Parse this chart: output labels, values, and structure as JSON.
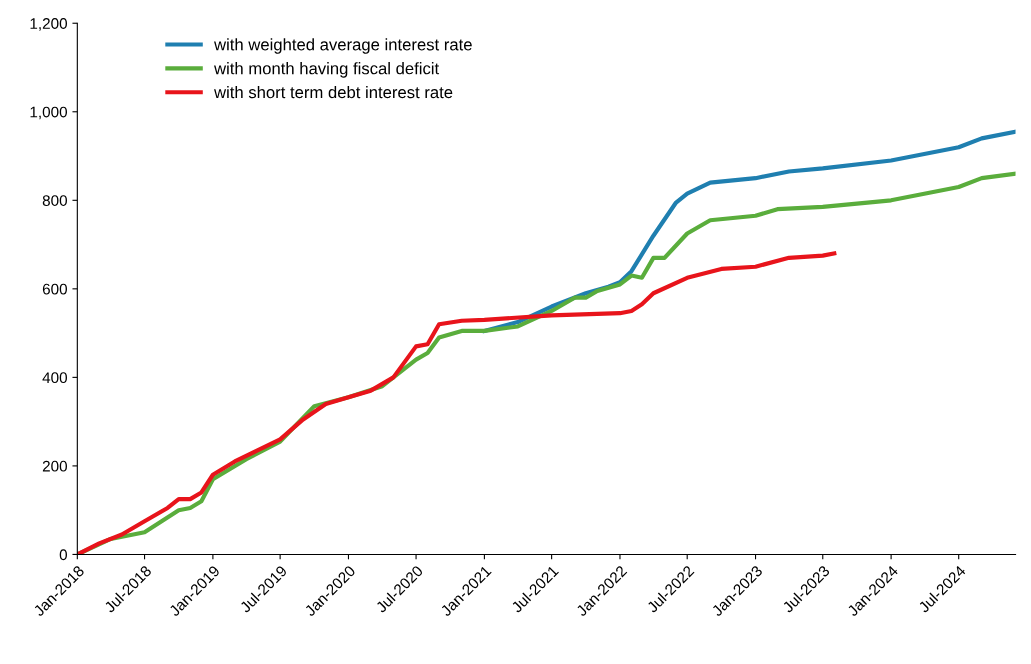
{
  "chart_data": {
    "type": "line",
    "series": [
      {
        "name": "with weighted average interest rate",
        "color": "#1f7fb0",
        "x": [
          "2021-01",
          "2021-04",
          "2021-07",
          "2021-10",
          "2021-12",
          "2022-01",
          "2022-02",
          "2022-04",
          "2022-06",
          "2022-07",
          "2022-09",
          "2023-01",
          "2023-04",
          "2023-07",
          "2024-01",
          "2024-07",
          "2024-09",
          "2024-12"
        ],
        "values": [
          505,
          525,
          560,
          590,
          605,
          615,
          640,
          720,
          795,
          815,
          840,
          850,
          865,
          872,
          890,
          920,
          940,
          955
        ]
      },
      {
        "name": "with month having fiscal deficit",
        "color": "#5aad3c",
        "x": [
          "2018-01",
          "2018-04",
          "2018-07",
          "2018-10",
          "2018-11",
          "2018-12",
          "2019-01",
          "2019-04",
          "2019-07",
          "2019-10",
          "2020-01",
          "2020-04",
          "2020-07",
          "2020-08",
          "2020-09",
          "2020-11",
          "2021-01",
          "2021-04",
          "2021-07",
          "2021-09",
          "2021-10",
          "2021-11",
          "2022-01",
          "2022-02",
          "2022-03",
          "2022-04",
          "2022-05",
          "2022-07",
          "2022-09",
          "2023-01",
          "2023-03",
          "2023-07",
          "2024-01",
          "2024-07",
          "2024-09",
          "2024-12"
        ],
        "values": [
          0,
          35,
          50,
          100,
          105,
          120,
          170,
          215,
          255,
          335,
          355,
          380,
          440,
          455,
          490,
          505,
          505,
          515,
          550,
          580,
          580,
          595,
          610,
          630,
          625,
          670,
          670,
          725,
          755,
          765,
          780,
          785,
          800,
          830,
          850,
          860
        ]
      },
      {
        "name": "with short term debt interest rate",
        "color": "#e8141b",
        "x": [
          "2018-01",
          "2018-03",
          "2018-05",
          "2018-07",
          "2018-09",
          "2018-10",
          "2018-11",
          "2018-12",
          "2019-01",
          "2019-03",
          "2019-05",
          "2019-07",
          "2019-09",
          "2019-11",
          "2020-01",
          "2020-03",
          "2020-05",
          "2020-07",
          "2020-08",
          "2020-09",
          "2020-11",
          "2021-01",
          "2021-07",
          "2022-01",
          "2022-02",
          "2022-03",
          "2022-04",
          "2022-07",
          "2022-10",
          "2023-01",
          "2023-04",
          "2023-07",
          "2023-08"
        ],
        "values": [
          0,
          25,
          45,
          75,
          105,
          125,
          125,
          140,
          180,
          210,
          235,
          260,
          305,
          340,
          355,
          370,
          400,
          470,
          475,
          520,
          528,
          530,
          540,
          545,
          550,
          565,
          590,
          625,
          645,
          650,
          670,
          675,
          680
        ]
      }
    ],
    "xlim": [
      "2018-01",
      "2024-12"
    ],
    "xticks": [
      {
        "value": "2018-01",
        "label": "Jan-2018"
      },
      {
        "value": "2018-07",
        "label": "Jul-2018"
      },
      {
        "value": "2019-01",
        "label": "Jan-2019"
      },
      {
        "value": "2019-07",
        "label": "Jul-2019"
      },
      {
        "value": "2020-01",
        "label": "Jan-2020"
      },
      {
        "value": "2020-07",
        "label": "Jul-2020"
      },
      {
        "value": "2021-01",
        "label": "Jan-2021"
      },
      {
        "value": "2021-07",
        "label": "Jul-2021"
      },
      {
        "value": "2022-01",
        "label": "Jan-2022"
      },
      {
        "value": "2022-07",
        "label": "Jul-2022"
      },
      {
        "value": "2023-01",
        "label": "Jan-2023"
      },
      {
        "value": "2023-07",
        "label": "Jul-2023"
      },
      {
        "value": "2024-01",
        "label": "Jan-2024"
      },
      {
        "value": "2024-07",
        "label": "Jul-2024"
      }
    ],
    "ylim": [
      0,
      1200
    ],
    "yticks": [
      0,
      200,
      400,
      600,
      800,
      {
        "value": 1000,
        "label": "1,000"
      },
      {
        "value": 1200,
        "label": "1,200"
      }
    ],
    "legend": "top left",
    "grid": false,
    "marker": "none",
    "line_style": "solid"
  }
}
